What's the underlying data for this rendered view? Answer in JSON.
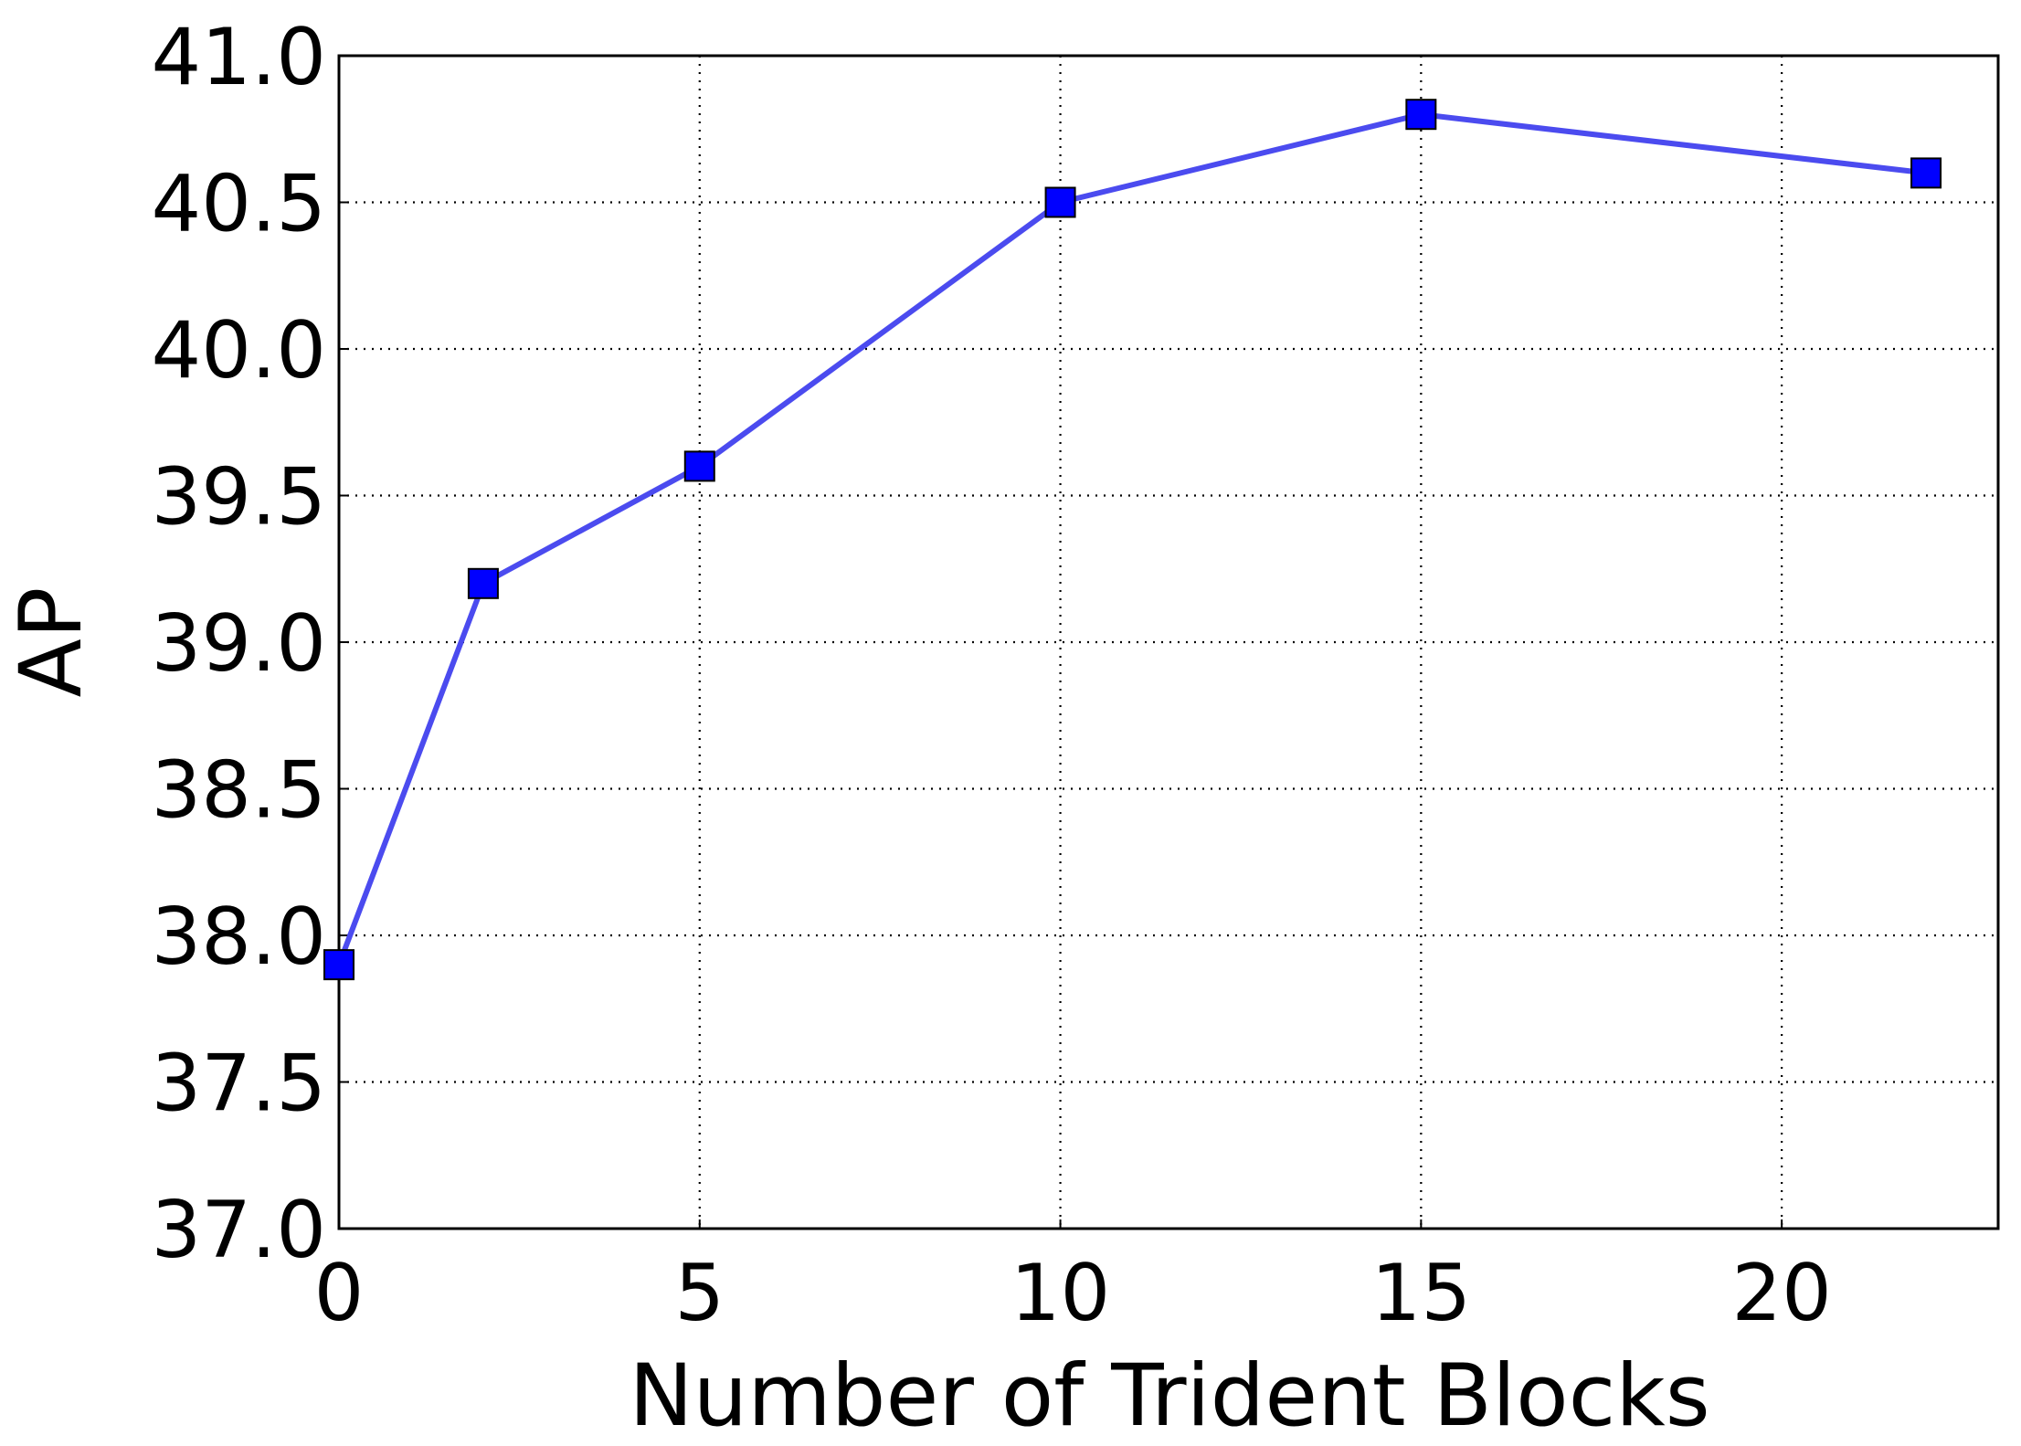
{
  "chart_data": {
    "type": "line",
    "x_label": "Number of Trident Blocks",
    "y_label": "AP",
    "x": [
      0,
      2,
      5,
      10,
      15,
      22
    ],
    "values": [
      37.9,
      39.2,
      39.6,
      40.5,
      40.8,
      40.6
    ],
    "color": "#4b4bef",
    "marker_color": "#0000ff",
    "xlim": [
      0,
      23
    ],
    "xticks": [
      0,
      5,
      10,
      15,
      20
    ],
    "ylim": [
      37,
      41
    ],
    "yticks": [
      {
        "value": 37,
        "label": "37.0"
      },
      {
        "value": 37.5,
        "label": "37.5"
      },
      {
        "value": 38,
        "label": "38.0"
      },
      {
        "value": 38.5,
        "label": "38.5"
      },
      {
        "value": 39,
        "label": "39.0"
      },
      {
        "value": 39.5,
        "label": "39.5"
      },
      {
        "value": 40,
        "label": "40.0"
      },
      {
        "value": 40.5,
        "label": "40.5"
      },
      {
        "value": 41,
        "label": "41.0"
      }
    ],
    "grid": true
  }
}
